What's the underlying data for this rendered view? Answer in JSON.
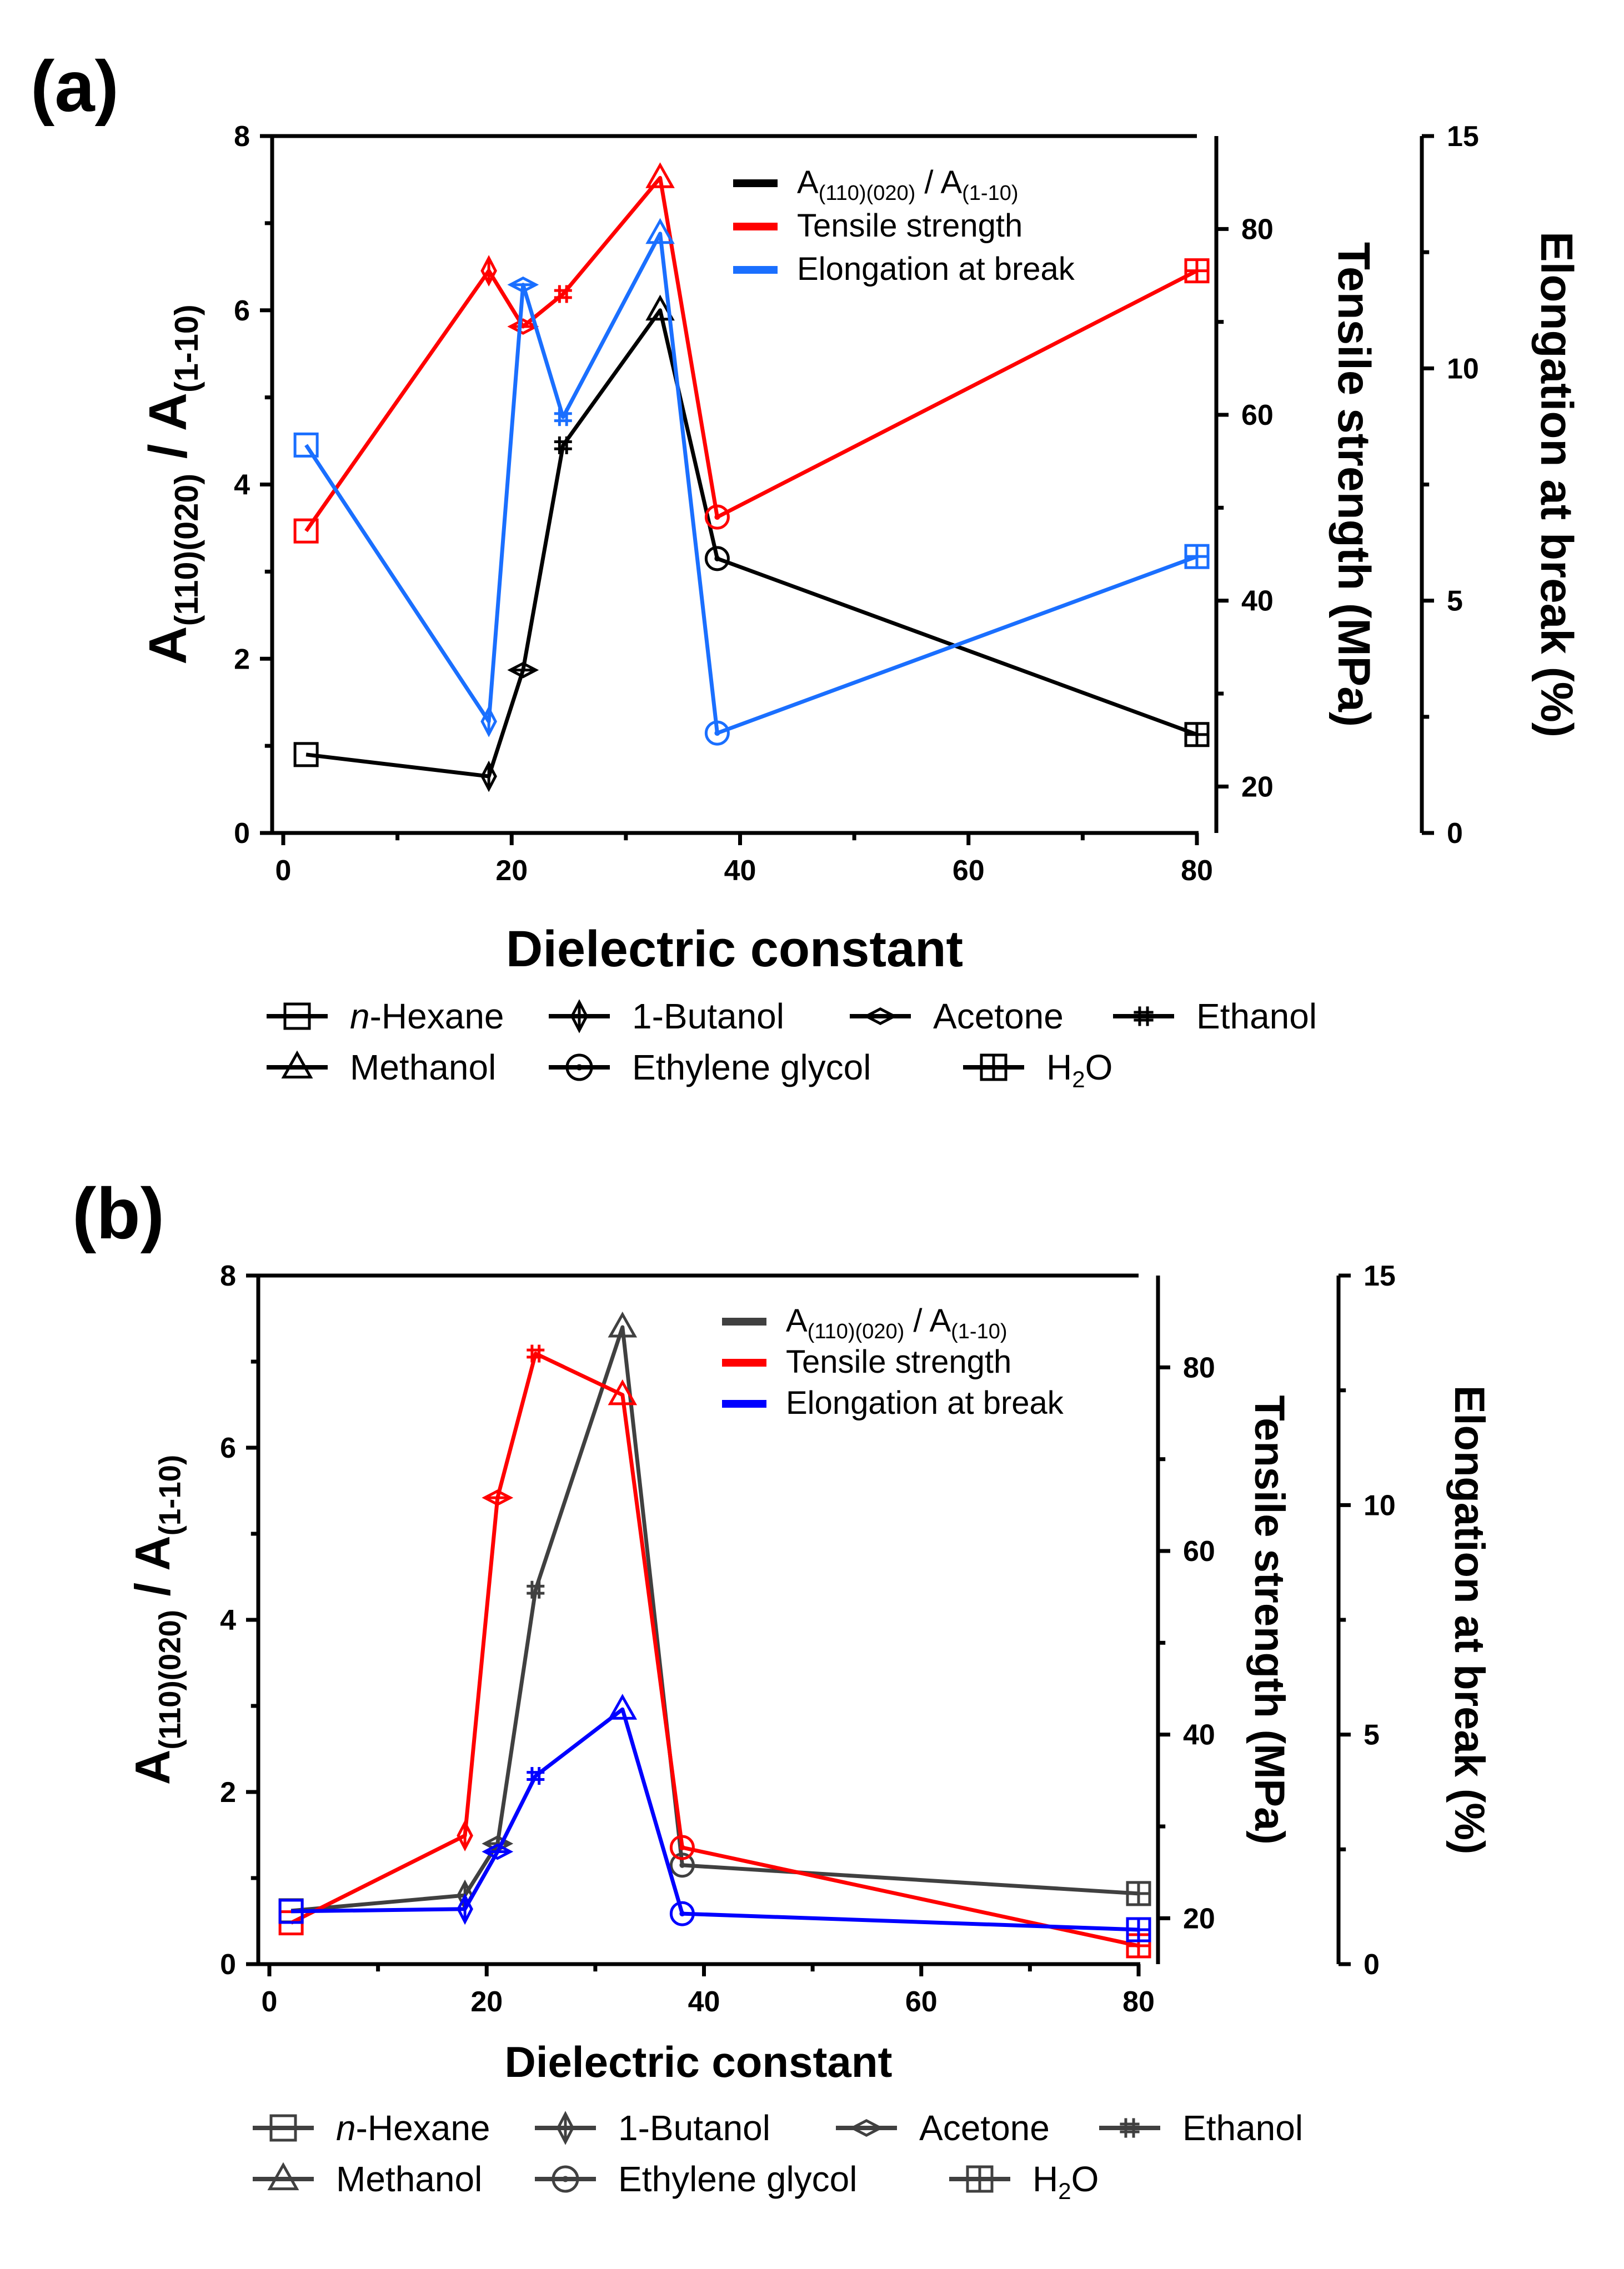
{
  "figure": {
    "colors": {
      "ratio": "#000000",
      "ratio_b": "#404040",
      "tensile": "#ff0000",
      "elongation": "#0000ff",
      "elongation_a": "#1a6fff"
    },
    "marker_legend": [
      {
        "symbol": "square",
        "label": "n-Hexane",
        "italic_prefix": "n",
        "rest": "-Hexane"
      },
      {
        "symbol": "diamond-vertical",
        "label": "1-Butanol"
      },
      {
        "symbol": "diamond-horizontal",
        "label": "Acetone"
      },
      {
        "symbol": "hash",
        "label": "Ethanol"
      },
      {
        "symbol": "triangle",
        "label": "Methanol"
      },
      {
        "symbol": "circle",
        "label": "Ethylene glycol"
      },
      {
        "symbol": "square-cross",
        "label": "H2O",
        "main": "H",
        "sub": "2",
        "tail": "O"
      }
    ]
  },
  "chart_data": [
    {
      "panel": "(a)",
      "type": "line",
      "xlabel": "Dielectric constant",
      "xlim": [
        0,
        80
      ],
      "xticks": [
        "0",
        "20",
        "40",
        "60",
        "80"
      ],
      "y_left": {
        "label_main": "A",
        "label_sub1": "(110)(020)",
        "label_sep": " / A",
        "label_sub2": "(1-10)",
        "lim": [
          0,
          8
        ],
        "ticks": [
          "0",
          "2",
          "4",
          "6",
          "8"
        ]
      },
      "y_right1": {
        "label": "Tensile strength (MPa)",
        "lim": [
          15,
          90
        ],
        "ticks": [
          "20",
          "40",
          "60",
          "80"
        ]
      },
      "y_right2": {
        "label": "Elongation at break (%)",
        "lim": [
          0,
          15
        ],
        "ticks": [
          "0",
          "5",
          "10",
          "15"
        ]
      },
      "legend": {
        "ratio": {
          "main": "A",
          "sub1": "(110)(020)",
          "sep": " / A",
          "sub2": "(1-10)"
        },
        "tensile": "Tensile strength",
        "elongation": "Elongation at break"
      },
      "x": [
        2,
        18,
        21,
        24.5,
        33,
        38,
        80
      ],
      "series": [
        {
          "name": "ratio",
          "axis": "y_left",
          "values": [
            0.9,
            0.65,
            1.87,
            4.45,
            6.0,
            3.15,
            1.13
          ]
        },
        {
          "name": "tensile",
          "axis": "y_right1",
          "values": [
            47.5,
            75.5,
            69.5,
            73.0,
            85.5,
            49.0,
            75.5
          ]
        },
        {
          "name": "elongation",
          "axis": "y_right2",
          "values": [
            8.35,
            2.4,
            11.8,
            8.95,
            12.9,
            2.15,
            5.95
          ]
        }
      ]
    },
    {
      "panel": "(b)",
      "type": "line",
      "xlabel": "Dielectric constant",
      "xlim": [
        0,
        80
      ],
      "xticks": [
        "0",
        "20",
        "40",
        "60",
        "80"
      ],
      "y_left": {
        "label_main": "A",
        "label_sub1": "(110)(020)",
        "label_sep": " / A",
        "label_sub2": "(1-10)",
        "lim": [
          0,
          8
        ],
        "ticks": [
          "0",
          "2",
          "4",
          "6",
          "8"
        ]
      },
      "y_right1": {
        "label": "Tensile strength (MPa)",
        "lim": [
          15,
          90
        ],
        "ticks": [
          "20",
          "40",
          "60",
          "80"
        ]
      },
      "y_right2": {
        "label": "Elongation at break (%)",
        "lim": [
          0,
          15
        ],
        "ticks": [
          "0",
          "5",
          "10",
          "15"
        ]
      },
      "legend": {
        "ratio": {
          "main": "A",
          "sub1": "(110)(020)",
          "sep": " / A",
          "sub2": "(1-10)"
        },
        "tensile": "Tensile strength",
        "elongation": "Elongation at break"
      },
      "x": [
        2,
        18,
        21,
        24.5,
        32.5,
        38,
        80
      ],
      "series": [
        {
          "name": "ratio",
          "axis": "y_left",
          "values": [
            0.62,
            0.8,
            1.4,
            4.35,
            7.4,
            1.15,
            0.82
          ]
        },
        {
          "name": "tensile",
          "axis": "y_right1",
          "values": [
            19.5,
            29.0,
            65.8,
            81.5,
            77.0,
            27.7,
            17.0
          ]
        },
        {
          "name": "elongation",
          "axis": "y_right2",
          "values": [
            1.15,
            1.2,
            2.45,
            4.1,
            5.55,
            1.1,
            0.75
          ]
        }
      ]
    }
  ]
}
